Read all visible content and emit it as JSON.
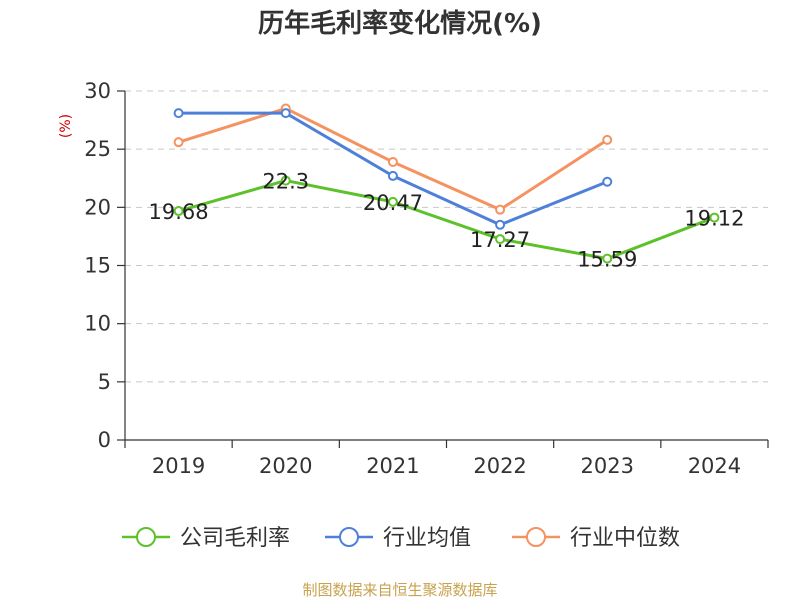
{
  "chart_data": {
    "type": "line",
    "title": "历年毛利率变化情况(%)",
    "ylabel": "(%)",
    "categories": [
      "2019",
      "2020",
      "2021",
      "2022",
      "2023",
      "2024"
    ],
    "ylim": [
      0,
      30
    ],
    "yticks": [
      0,
      5,
      10,
      15,
      20,
      25,
      30
    ],
    "grid": true,
    "legend_position": "bottom",
    "series": [
      {
        "name": "公司毛利率",
        "color": "#5cc12a",
        "values": [
          19.68,
          22.3,
          20.47,
          17.27,
          15.59,
          19.12
        ],
        "labels": [
          "19.68",
          "22.3",
          "20.47",
          "17.27",
          "15.59",
          "19.12"
        ]
      },
      {
        "name": "行业均值",
        "color": "#4f80d9",
        "values": [
          28.1,
          28.1,
          22.7,
          18.5,
          22.2,
          null
        ]
      },
      {
        "name": "行业中位数",
        "color": "#f59260",
        "values": [
          25.6,
          28.5,
          23.9,
          19.8,
          25.8,
          null
        ]
      }
    ]
  },
  "source": "制图数据来自恒生聚源数据库"
}
